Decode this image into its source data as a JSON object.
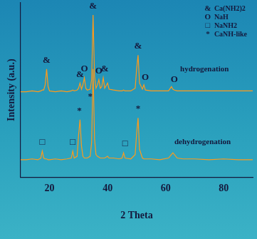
{
  "chart_data": {
    "type": "line",
    "x_label": "2 Theta",
    "y_label": "Intensity (a.u.)",
    "x": [
      10,
      12,
      14,
      16,
      17,
      17.5,
      18,
      18.5,
      19,
      19.5,
      20,
      22,
      24,
      26,
      27.5,
      28,
      28.5,
      29.5,
      30,
      30.5,
      31,
      31.5,
      32,
      32.5,
      33,
      34,
      34.5,
      35,
      35.5,
      36,
      36.5,
      37,
      37.5,
      38,
      38.5,
      39,
      40,
      40.5,
      42,
      44,
      45,
      45.5,
      46,
      48,
      49.5,
      50,
      50.5,
      51,
      52,
      52.5,
      53,
      55,
      58,
      61,
      62,
      62.5,
      63,
      64,
      66,
      70,
      75,
      80,
      85,
      90
    ],
    "series": [
      {
        "name": "hydrogenation",
        "color": "#ff9a1a",
        "values": [
          49,
          49,
          49.5,
          49,
          49.5,
          50,
          50,
          53,
          62,
          52,
          49.5,
          49,
          49.5,
          49,
          49.5,
          50,
          49.5,
          50,
          51,
          54,
          50.5,
          53,
          57,
          51,
          50,
          50.5,
          56,
          93,
          58,
          51,
          53,
          56,
          51,
          52,
          57,
          51,
          54,
          50.5,
          50,
          49.5,
          49.5,
          50,
          49.5,
          49.5,
          51,
          62,
          70,
          54,
          50.5,
          53,
          50,
          49.5,
          49.5,
          49.5,
          52,
          50.5,
          50,
          49.5,
          49.5,
          49.5,
          49.5,
          49.5,
          49.5,
          49.5
        ]
      },
      {
        "name": "dehydrogenation",
        "color": "#ff9a1a",
        "values": [
          10,
          10,
          10.5,
          10,
          11,
          15,
          11,
          10.5,
          10.5,
          10,
          10,
          10.5,
          10,
          10.5,
          11,
          15,
          11,
          12,
          24,
          33,
          18,
          12,
          11,
          11,
          11,
          12,
          20,
          62,
          22,
          13,
          12,
          11.5,
          11,
          11,
          11,
          11,
          12,
          11,
          11,
          10.5,
          11,
          14,
          11,
          10.5,
          13,
          25,
          34,
          16,
          11,
          10.5,
          10.5,
          10.5,
          10,
          11,
          13,
          14,
          13,
          11,
          10.5,
          10.5,
          10,
          10.5,
          10,
          10
        ]
      }
    ],
    "xlim": [
      10,
      90
    ],
    "xticks": [
      20,
      40,
      60,
      80
    ],
    "ylim": [
      0,
      100
    ],
    "tick_labels": "x",
    "grid": false,
    "legend": "upper right",
    "symbols": [
      {
        "symbol": "&",
        "name": "Ca(NH2)2"
      },
      {
        "symbol": "O",
        "name": "NaH"
      },
      {
        "symbol": "□",
        "name": "NaNH2"
      },
      {
        "symbol": "*",
        "name": "CaNH-like"
      }
    ],
    "annotations": [
      {
        "text": "&",
        "x": 19,
        "y": 67
      },
      {
        "text": "&",
        "x": 30.5,
        "y": 59
      },
      {
        "text": "O",
        "x": 32,
        "y": 62
      },
      {
        "text": "&",
        "x": 35,
        "y": 98
      },
      {
        "text": "O",
        "x": 37,
        "y": 61
      },
      {
        "text": "&",
        "x": 39,
        "y": 62
      },
      {
        "text": "&",
        "x": 50.5,
        "y": 75
      },
      {
        "text": "O",
        "x": 53,
        "y": 57
      },
      {
        "text": "O",
        "x": 63,
        "y": 56
      },
      {
        "text": "□",
        "x": 17.5,
        "y": 20
      },
      {
        "text": "□",
        "x": 28,
        "y": 20
      },
      {
        "text": "□",
        "x": 46,
        "y": 19
      },
      {
        "text": "*",
        "x": 30.3,
        "y": 38
      },
      {
        "text": "*",
        "x": 34,
        "y": 46
      },
      {
        "text": "*",
        "x": 50.5,
        "y": 39
      },
      {
        "text": "hydrogenation",
        "x": 65,
        "y": 62
      },
      {
        "text": "dehydrogenation",
        "x": 63,
        "y": 20
      }
    ]
  }
}
